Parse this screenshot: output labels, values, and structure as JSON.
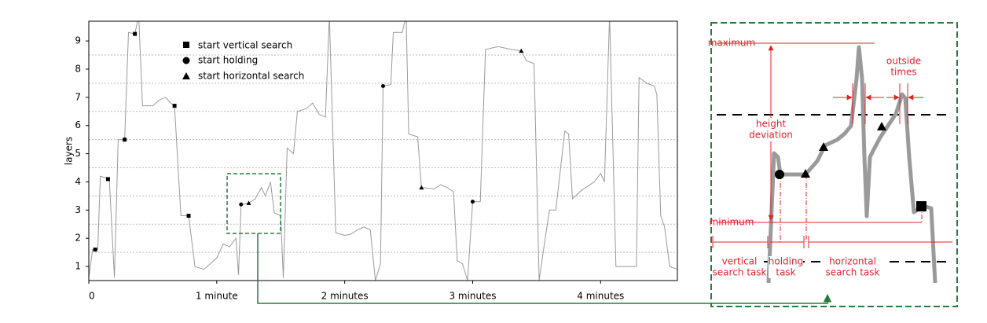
{
  "chart_data": {
    "type": "line",
    "y_label": "layers",
    "xlim": [
      0,
      4.6
    ],
    "ylim": [
      0.5,
      9.7
    ],
    "xticks": [
      0,
      {
        "value": 1,
        "label": "1 minute"
      },
      {
        "value": 2,
        "label": "2 minutes"
      },
      {
        "value": 3,
        "label": "3 minutes"
      },
      {
        "value": 4,
        "label": "4 minutes"
      }
    ],
    "yticks": [
      1,
      2,
      3,
      4,
      5,
      6,
      7,
      8,
      9
    ],
    "grid_lines": [
      1.5,
      2.5,
      3.5,
      4.5,
      5.5,
      6.5,
      7.5,
      8.5
    ],
    "series": [
      {
        "color": "#9a9a9a",
        "x": [
          0,
          0.03,
          0.07,
          0.09,
          0.13,
          0.16,
          0.2,
          0.23,
          0.28,
          0.31,
          0.36,
          0.39,
          0.42,
          0.5,
          0.55,
          0.6,
          0.64,
          0.67,
          0.72,
          0.78,
          0.83,
          0.9,
          0.95,
          1.0,
          1.05,
          1.1,
          1.15,
          1.17,
          1.19,
          1.25,
          1.3,
          1.35,
          1.38,
          1.42,
          1.45,
          1.5,
          1.52,
          1.55,
          1.6,
          1.63,
          1.7,
          1.75,
          1.8,
          1.85,
          1.88,
          1.93,
          2.0,
          2.05,
          2.1,
          2.15,
          2.2,
          2.24,
          2.28,
          2.3,
          2.36,
          2.38,
          2.45,
          2.48,
          2.5,
          2.57,
          2.6,
          2.7,
          2.75,
          2.8,
          2.85,
          2.88,
          2.92,
          2.96,
          3.0,
          3.06,
          3.1,
          3.2,
          3.3,
          3.38,
          3.42,
          3.48,
          3.52,
          3.56,
          3.6,
          3.65,
          3.72,
          3.75,
          3.78,
          3.85,
          3.95,
          4.0,
          4.03,
          4.07,
          4.12,
          4.2,
          4.28,
          4.3,
          4.36,
          4.42,
          4.44,
          4.47,
          4.5,
          4.54,
          4.6
        ],
        "values": [
          0.6,
          1.6,
          1.6,
          4.2,
          4.15,
          4.1,
          0.6,
          5.5,
          5.5,
          9.3,
          9.25,
          9.9,
          6.7,
          6.7,
          6.9,
          7.0,
          6.8,
          6.7,
          2.8,
          2.8,
          1.0,
          0.9,
          1.1,
          1.3,
          1.8,
          1.7,
          2.0,
          0.7,
          3.2,
          3.25,
          3.4,
          3.8,
          3.5,
          4.0,
          2.9,
          2.8,
          0.6,
          5.2,
          5.0,
          6.5,
          6.6,
          6.8,
          6.4,
          6.3,
          9.9,
          2.2,
          2.1,
          2.15,
          2.3,
          2.4,
          2.3,
          0.5,
          1.1,
          7.4,
          7.45,
          9.3,
          9.3,
          9.9,
          5.7,
          5.6,
          3.8,
          3.75,
          3.9,
          3.8,
          3.65,
          1.2,
          1.1,
          0.5,
          3.3,
          3.3,
          8.7,
          8.8,
          8.7,
          8.65,
          8.3,
          8.2,
          0.5,
          1.8,
          3.0,
          3.0,
          5.8,
          5.7,
          3.4,
          3.7,
          4.0,
          4.3,
          4.0,
          9.9,
          1.0,
          1.0,
          1.0,
          7.7,
          7.5,
          7.4,
          7.1,
          2.8,
          2.4,
          1.0,
          0.9
        ]
      },
      {
        "name": "start vertical search",
        "marker": "square",
        "color": "#000000",
        "x": [
          0.05,
          0.15,
          0.28,
          0.36,
          0.67,
          0.78
        ],
        "values": [
          1.6,
          4.1,
          5.5,
          9.25,
          6.7,
          2.8
        ]
      },
      {
        "name": "start holding",
        "marker": "circle",
        "color": "#000000",
        "x": [
          1.19,
          2.3,
          3.0
        ],
        "values": [
          3.2,
          7.4,
          3.3
        ]
      },
      {
        "name": "start horizontal search",
        "marker": "triangle",
        "color": "#000000",
        "x": [
          1.25,
          2.6,
          3.38
        ],
        "values": [
          3.25,
          3.8,
          8.65
        ]
      }
    ]
  },
  "inset": {
    "maximum": "maximum",
    "minimum": "minimum",
    "height_deviation": [
      "height",
      "deviation"
    ],
    "outside_times": [
      "outside",
      "times"
    ],
    "vertical_search_task": [
      "vertical",
      "search task"
    ],
    "holding_task": [
      "holding",
      "task"
    ],
    "horizontal_search_task": [
      "horizontal",
      "search task"
    ]
  }
}
